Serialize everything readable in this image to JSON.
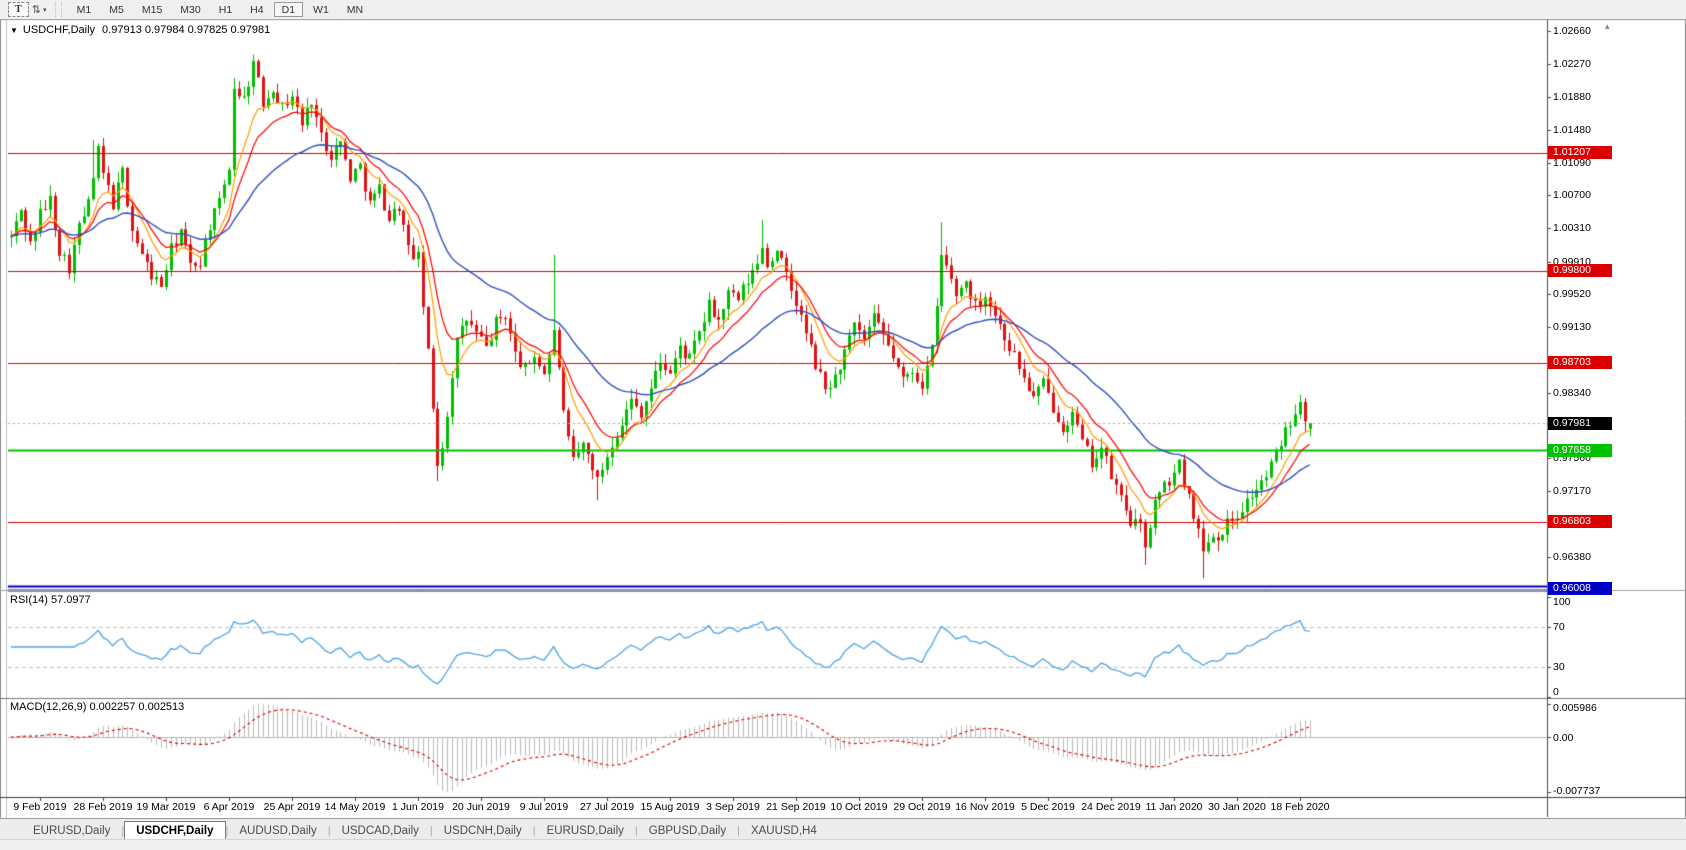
{
  "toolbar": {
    "text_tool_label": "T",
    "arrows_tool_glyph": "⇅",
    "dropdown_caret": "▾",
    "timeframes": [
      "M1",
      "M5",
      "M15",
      "M30",
      "H1",
      "H4",
      "D1",
      "W1",
      "MN"
    ],
    "active_timeframe": "D1"
  },
  "chart": {
    "symbol_label": "USDCHF,Daily",
    "ohlc_text": "0.97913 0.97984 0.97825 0.97981",
    "collapse_glyph": "▼",
    "shift_marker_glyph": "▴"
  },
  "price_axis": {
    "ticks": [
      "1.02660",
      "1.02270",
      "1.01880",
      "1.01480",
      "1.01090",
      "1.00700",
      "1.00310",
      "0.99910",
      "0.99520",
      "0.99130",
      "0.98340",
      "0.97560",
      "0.97170",
      "0.96380"
    ],
    "badges": [
      {
        "label": "1.01207",
        "bg": "#dd0000"
      },
      {
        "label": "0.99800",
        "bg": "#dd0000"
      },
      {
        "label": "0.98703",
        "bg": "#dd0000"
      },
      {
        "label": "0.97981",
        "bg": "#000000"
      },
      {
        "label": "0.97658",
        "bg": "#00c200"
      },
      {
        "label": "0.96803",
        "bg": "#dd0000"
      },
      {
        "label": "0.96008",
        "bg": "#0000c8"
      }
    ]
  },
  "rsi": {
    "label": "RSI(14) 57.0977",
    "period": 14,
    "value": 57.0977,
    "ticks": [
      "100",
      "70",
      "30",
      "0"
    ],
    "level_lines": [
      70,
      30
    ]
  },
  "macd": {
    "label": "MACD(12,26,9) 0.002257 0.002513",
    "fast": 12,
    "slow": 26,
    "signal": 9,
    "value": 0.002257,
    "signal_value": 0.002513,
    "axis_max": "0.005986",
    "axis_zero": "0.00",
    "axis_min": "-0.007737"
  },
  "date_axis": [
    "9 Feb 2019",
    "28 Feb 2019",
    "19 Mar 2019",
    "6 Apr 2019",
    "25 Apr 2019",
    "14 May 2019",
    "1 Jun 2019",
    "20 Jun 2019",
    "9 Jul 2019",
    "27 Jul 2019",
    "15 Aug 2019",
    "3 Sep 2019",
    "21 Sep 2019",
    "10 Oct 2019",
    "29 Oct 2019",
    "16 Nov 2019",
    "5 Dec 2019",
    "24 Dec 2019",
    "11 Jan 2020",
    "30 Jan 2020",
    "18 Feb 2020"
  ],
  "tabs": [
    "EURUSD,Daily",
    "USDCHF,Daily",
    "AUDUSD,Daily",
    "USDCAD,Daily",
    "USDCNH,Daily",
    "EURUSD,Daily",
    "GBPUSD,Daily",
    "XAUUSD,H4"
  ],
  "active_tab_index": 1,
  "tab_arrows": {
    "left": "◂",
    "right": "▸"
  },
  "colors": {
    "bull": "#00be00",
    "bear": "#de1212",
    "ma_fast": "#ff9d00",
    "ma_medium": "#ff0000",
    "ma_slow": "#3050c0",
    "rsi_line": "#4da6e8",
    "rsi_levels": "#c0c0c0",
    "macd_hist": "#bcbcbc",
    "macd_signal": "#dd0000",
    "level_red": "#dd0000",
    "level_green": "#00c200",
    "level_blue": "#0000c8",
    "current_price_line": "#a8a8a8",
    "axis": "#4a4a4a"
  },
  "chart_data": {
    "type": "candlestick",
    "symbol": "USDCHF",
    "timeframe": "Daily",
    "bar_count": 269,
    "last_bar": {
      "open": 0.97913,
      "high": 0.97984,
      "low": 0.97825,
      "close": 0.97981
    },
    "current_price": 0.97981,
    "price_axis_range": {
      "top": 1.0277,
      "bottom": 0.9599
    },
    "horizontal_levels": [
      {
        "price": 1.01207,
        "color": "#dd0000",
        "width": 1
      },
      {
        "price": 0.998,
        "color": "#dd0000",
        "width": 1
      },
      {
        "price": 0.98703,
        "color": "#dd0000",
        "width": 1
      },
      {
        "price": 0.97658,
        "color": "#00c200",
        "width": 2
      },
      {
        "price": 0.96803,
        "color": "#dd0000",
        "width": 1
      },
      {
        "price": 0.96008,
        "color": "#0000c8",
        "width": 2,
        "style": "double"
      }
    ],
    "overlays": [
      {
        "name": "ma-fast",
        "type": "ema",
        "period": 8,
        "color": "#ff9d00"
      },
      {
        "name": "ma-medium",
        "type": "ema",
        "period": 13,
        "color": "#ff0000"
      },
      {
        "name": "ma-slow",
        "type": "ema",
        "period": 34,
        "color": "#3050c0"
      }
    ],
    "anchors": [
      [
        0,
        1.002
      ],
      [
        2,
        1.0052
      ],
      [
        4,
        1.0012
      ],
      [
        6,
        1.0048
      ],
      [
        8,
        1.0065
      ],
      [
        10,
        1.0005
      ],
      [
        12,
        0.9985
      ],
      [
        14,
        1.0032
      ],
      [
        16,
        1.006
      ],
      [
        18,
        1.0122
      ],
      [
        19,
        1.0095
      ],
      [
        21,
        1.006
      ],
      [
        23,
        1.0098
      ],
      [
        25,
        1.003
      ],
      [
        27,
        0.9998
      ],
      [
        29,
        0.9975
      ],
      [
        31,
        0.9962
      ],
      [
        33,
        1.0005
      ],
      [
        35,
        1.0028
      ],
      [
        37,
        0.9985
      ],
      [
        39,
        0.9992
      ],
      [
        41,
        1.0035
      ],
      [
        43,
        1.006
      ],
      [
        45,
        1.0105
      ],
      [
        46,
        1.02
      ],
      [
        48,
        1.0185
      ],
      [
        50,
        1.0228
      ],
      [
        52,
        1.018
      ],
      [
        54,
        1.02
      ],
      [
        56,
        1.0175
      ],
      [
        58,
        1.019
      ],
      [
        60,
        1.0155
      ],
      [
        62,
        1.0185
      ],
      [
        64,
        1.014
      ],
      [
        66,
        1.012
      ],
      [
        68,
        1.0132
      ],
      [
        70,
        1.0092
      ],
      [
        72,
        1.0105
      ],
      [
        74,
        1.006
      ],
      [
        76,
        1.0078
      ],
      [
        78,
        1.0042
      ],
      [
        80,
        1.0058
      ],
      [
        82,
        1.0005
      ],
      [
        84,
        0.9995
      ],
      [
        85,
        0.994
      ],
      [
        86,
        0.988
      ],
      [
        87,
        0.9815
      ],
      [
        88,
        0.9752
      ],
      [
        89,
        0.9772
      ],
      [
        90,
        0.981
      ],
      [
        91,
        0.9858
      ],
      [
        92,
        0.9895
      ],
      [
        94,
        0.9922
      ],
      [
        96,
        0.9905
      ],
      [
        98,
        0.9888
      ],
      [
        100,
        0.9918
      ],
      [
        102,
        0.9928
      ],
      [
        104,
        0.988
      ],
      [
        106,
        0.9862
      ],
      [
        108,
        0.988
      ],
      [
        110,
        0.9858
      ],
      [
        112,
        0.9905
      ],
      [
        113,
        0.9868
      ],
      [
        114,
        0.9808
      ],
      [
        115,
        0.9775
      ],
      [
        116,
        0.9752
      ],
      [
        118,
        0.9772
      ],
      [
        120,
        0.9748
      ],
      [
        121,
        0.9728
      ],
      [
        122,
        0.9745
      ],
      [
        124,
        0.9775
      ],
      [
        126,
        0.98
      ],
      [
        128,
        0.9825
      ],
      [
        130,
        0.9812
      ],
      [
        132,
        0.984
      ],
      [
        134,
        0.9872
      ],
      [
        136,
        0.9858
      ],
      [
        138,
        0.9888
      ],
      [
        140,
        0.9875
      ],
      [
        142,
        0.9905
      ],
      [
        144,
        0.9938
      ],
      [
        146,
        0.992
      ],
      [
        148,
        0.9952
      ],
      [
        150,
        0.9945
      ],
      [
        152,
        0.9968
      ],
      [
        154,
        0.9988
      ],
      [
        155,
        1.0012
      ],
      [
        156,
        0.9985
      ],
      [
        158,
        1.0008
      ],
      [
        160,
        0.9972
      ],
      [
        162,
        0.9942
      ],
      [
        164,
        0.9905
      ],
      [
        166,
        0.9868
      ],
      [
        168,
        0.9838
      ],
      [
        170,
        0.9852
      ],
      [
        172,
        0.9882
      ],
      [
        174,
        0.9912
      ],
      [
        176,
        0.9898
      ],
      [
        178,
        0.9922
      ],
      [
        180,
        0.9902
      ],
      [
        182,
        0.9878
      ],
      [
        184,
        0.9848
      ],
      [
        186,
        0.9862
      ],
      [
        188,
        0.9845
      ],
      [
        190,
        0.9885
      ],
      [
        191,
        0.9935
      ],
      [
        192,
        0.9998
      ],
      [
        193,
        0.9985
      ],
      [
        195,
        0.9952
      ],
      [
        197,
        0.9968
      ],
      [
        199,
        0.9938
      ],
      [
        201,
        0.9952
      ],
      [
        203,
        0.9928
      ],
      [
        205,
        0.9902
      ],
      [
        207,
        0.9878
      ],
      [
        209,
        0.9852
      ],
      [
        211,
        0.9828
      ],
      [
        213,
        0.9845
      ],
      [
        215,
        0.9818
      ],
      [
        217,
        0.9795
      ],
      [
        219,
        0.9808
      ],
      [
        221,
        0.9775
      ],
      [
        223,
        0.9752
      ],
      [
        225,
        0.9768
      ],
      [
        227,
        0.9735
      ],
      [
        229,
        0.9708
      ],
      [
        231,
        0.9682
      ],
      [
        233,
        0.9672
      ],
      [
        234,
        0.9655
      ],
      [
        235,
        0.9678
      ],
      [
        236,
        0.9702
      ],
      [
        238,
        0.9722
      ],
      [
        240,
        0.9738
      ],
      [
        241,
        0.9748
      ],
      [
        243,
        0.9712
      ],
      [
        244,
        0.9692
      ],
      [
        245,
        0.9668
      ],
      [
        246,
        0.9645
      ],
      [
        247,
        0.9662
      ],
      [
        249,
        0.9665
      ],
      [
        251,
        0.9678
      ],
      [
        253,
        0.969
      ],
      [
        255,
        0.9705
      ],
      [
        257,
        0.972
      ],
      [
        259,
        0.9735
      ],
      [
        261,
        0.976
      ],
      [
        263,
        0.979
      ],
      [
        265,
        0.9815
      ],
      [
        266,
        0.9828
      ],
      [
        267,
        0.9808
      ],
      [
        268,
        0.97981
      ]
    ],
    "spikes": [
      {
        "i": 17,
        "h": 1.0136
      },
      {
        "i": 50,
        "h": 1.0238
      },
      {
        "i": 88,
        "l": 0.9729
      },
      {
        "i": 112,
        "h": 0.9999
      },
      {
        "i": 121,
        "l": 0.9706
      },
      {
        "i": 155,
        "h": 1.0041
      },
      {
        "i": 192,
        "h": 1.0038
      },
      {
        "i": 234,
        "l": 0.9629
      },
      {
        "i": 246,
        "l": 0.9613
      }
    ]
  }
}
